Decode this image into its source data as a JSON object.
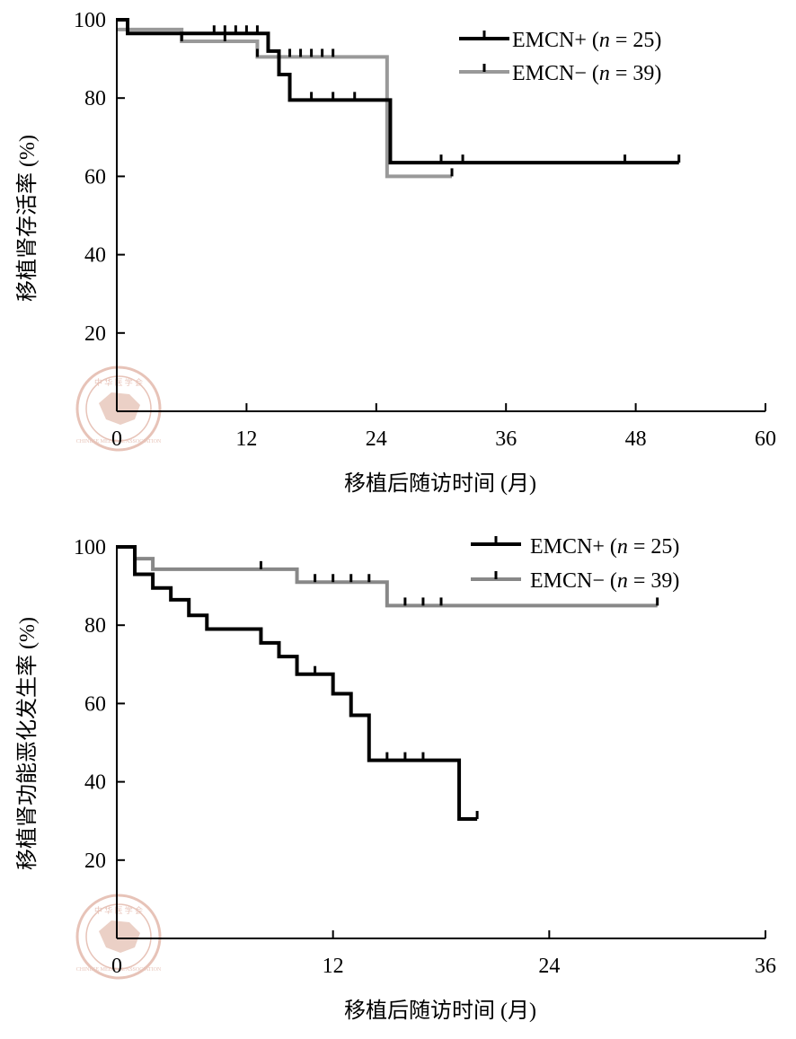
{
  "watermark_text": "CHINESE MEDICAL ASSOCIATION",
  "colors": {
    "positive": "#000000",
    "negative": "#999999",
    "axis": "#000000"
  },
  "chart_data": [
    {
      "type": "line",
      "step": true,
      "ylabel": "移植肾存活率 (%)",
      "xlabel": "移植后随访时间 (月)",
      "xlim": [
        0,
        60
      ],
      "ylim": [
        0,
        100
      ],
      "xticks": [
        "0",
        "12",
        "24",
        "36",
        "48",
        "60"
      ],
      "yticks": [
        "20",
        "40",
        "60",
        "80",
        "100"
      ],
      "legend_position": "top-right",
      "series": [
        {
          "name": "EMCN+ (n = 25)",
          "label_main": "EMCN+ (",
          "label_n": "n",
          "label_rest": " = 25)",
          "color": "#000000",
          "x": [
            0,
            1,
            14,
            15,
            16,
            25.3,
            52
          ],
          "y": [
            100,
            96.5,
            92,
            86,
            79.5,
            63.5,
            63.5
          ],
          "censor_x": [
            9,
            10,
            11,
            12,
            13,
            18,
            20,
            22,
            25.3,
            30,
            32,
            47,
            52
          ],
          "censor_y": [
            96.5,
            96.5,
            96.5,
            96.5,
            96.5,
            79.5,
            79.5,
            79.5,
            63.5,
            63.5,
            63.5,
            63.5,
            63.5
          ]
        },
        {
          "name": "EMCN− (n = 39)",
          "label_main": "EMCN− (",
          "label_n": "n",
          "label_rest": " = 39)",
          "color": "#999999",
          "x": [
            0,
            6,
            13,
            25,
            31
          ],
          "y": [
            97.5,
            94.5,
            90.5,
            60,
            60
          ],
          "censor_x": [
            6,
            10,
            13,
            16,
            17,
            18,
            19,
            20,
            31
          ],
          "censor_y": [
            94.5,
            94.5,
            90.5,
            90.5,
            90.5,
            90.5,
            90.5,
            90.5,
            60
          ]
        }
      ]
    },
    {
      "type": "line",
      "step": true,
      "ylabel": "移植肾功能恶化发生率 (%)",
      "xlabel": "移植后随访时间 (月)",
      "xlim": [
        0,
        36
      ],
      "ylim": [
        0,
        100
      ],
      "xticks": [
        "0",
        "12",
        "24",
        "36"
      ],
      "yticks": [
        "20",
        "40",
        "60",
        "80",
        "100"
      ],
      "legend_position": "top-right",
      "series": [
        {
          "name": "EMCN+ (n = 25)",
          "label_main": "EMCN+ (",
          "label_n": "n",
          "label_rest": " = 25)",
          "color": "#000000",
          "x": [
            0,
            1,
            2,
            3,
            4,
            5,
            8,
            9,
            10,
            12,
            13,
            14,
            19,
            20
          ],
          "y": [
            100,
            93,
            89.5,
            86.5,
            82.5,
            79,
            75.5,
            72,
            67.5,
            62.5,
            57,
            45.5,
            30.5,
            30.5
          ],
          "censor_x": [
            11,
            15,
            16,
            17,
            20
          ],
          "censor_y": [
            67.5,
            45.5,
            45.5,
            45.5,
            30.5
          ]
        },
        {
          "name": "EMCN− (n = 39)",
          "label_main": "EMCN− (",
          "label_n": "n",
          "label_rest": " = 39)",
          "color": "#888888",
          "x": [
            0,
            1,
            2,
            10,
            15,
            30
          ],
          "y": [
            100,
            97,
            94.3,
            91,
            85,
            85
          ],
          "censor_x": [
            8,
            11,
            12,
            13,
            14,
            16,
            17,
            18,
            30
          ],
          "censor_y": [
            94.3,
            91,
            91,
            91,
            91,
            85,
            85,
            85,
            85
          ]
        }
      ]
    }
  ]
}
